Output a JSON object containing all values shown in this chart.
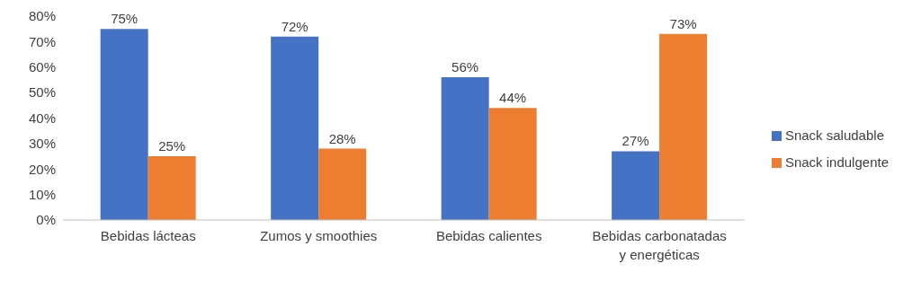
{
  "chart_data": {
    "type": "bar",
    "categories": [
      "Bebidas lácteas",
      "Zumos y smoothies",
      "Bebidas calientes",
      "Bebidas carbonatadas y energéticas"
    ],
    "series": [
      {
        "name": "Snack saludable",
        "color": "#4472c4",
        "values": [
          75,
          72,
          56,
          27
        ],
        "value_labels": [
          "75%",
          "72%",
          "56%",
          "27%"
        ]
      },
      {
        "name": "Snack indulgente",
        "color": "#ed7d31",
        "values": [
          25,
          28,
          44,
          73
        ],
        "value_labels": [
          "25%",
          "28%",
          "44%",
          "73%"
        ]
      }
    ],
    "ylim": [
      0,
      80
    ],
    "yticks": [
      {
        "value": 0,
        "label": "0%"
      },
      {
        "value": 10,
        "label": "10%"
      },
      {
        "value": 20,
        "label": "20%"
      },
      {
        "value": 30,
        "label": "30%"
      },
      {
        "value": 40,
        "label": "40%"
      },
      {
        "value": 50,
        "label": "50%"
      },
      {
        "value": 60,
        "label": "60%"
      },
      {
        "value": 70,
        "label": "70%"
      },
      {
        "value": 80,
        "label": "80%"
      }
    ],
    "grid": false,
    "legend": "right"
  }
}
